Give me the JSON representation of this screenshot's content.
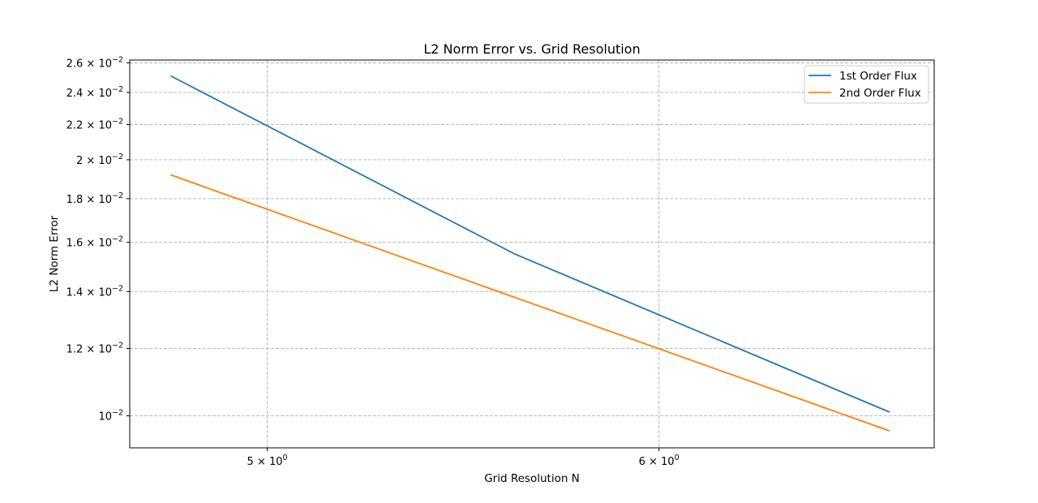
{
  "chart_data": {
    "type": "line",
    "title": "L2 Norm Error vs. Grid Resolution",
    "xlabel": "Grid Resolution N",
    "ylabel": "L2 Norm Error",
    "xscale": "log",
    "yscale": "log",
    "xlim": [
      4.69,
      6.82
    ],
    "ylim": [
      0.00917,
      0.0262
    ],
    "grid": true,
    "legend_position": "top-right",
    "x_ticks": [
      {
        "value": 5,
        "label": "5 × 10^0"
      },
      {
        "value": 6,
        "label": "6 × 10^0"
      }
    ],
    "y_ticks": [
      {
        "value": 0.01,
        "label": "10^−2"
      },
      {
        "value": 0.012,
        "label": "1.2 × 10^−2"
      },
      {
        "value": 0.014,
        "label": "1.4 × 10^−2"
      },
      {
        "value": 0.016,
        "label": "1.6 × 10^−2"
      },
      {
        "value": 0.018,
        "label": "1.8 × 10^−2"
      },
      {
        "value": 0.02,
        "label": "2 × 10^−2"
      },
      {
        "value": 0.022,
        "label": "2.2 × 10^−2"
      },
      {
        "value": 0.024,
        "label": "2.4 × 10^−2"
      },
      {
        "value": 0.026,
        "label": "2.6 × 10^−2"
      }
    ],
    "series": [
      {
        "name": "1st Order Flux",
        "color": "#1f77b4",
        "x": [
          4.78,
          5.61,
          6.68
        ],
        "y": [
          0.0251,
          0.0155,
          0.0101
        ]
      },
      {
        "name": "2nd Order Flux",
        "color": "#ff7f0e",
        "x": [
          4.78,
          6.68
        ],
        "y": [
          0.0192,
          0.0096
        ]
      }
    ]
  }
}
